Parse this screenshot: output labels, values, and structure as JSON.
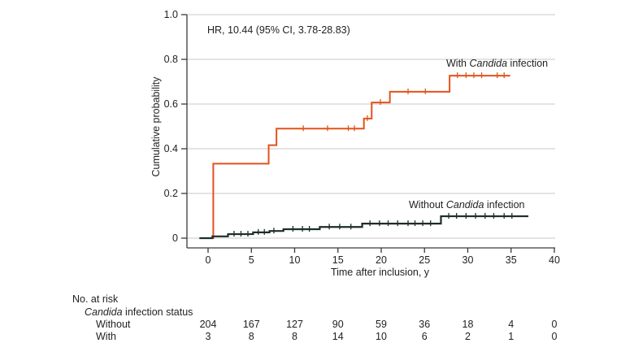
{
  "figure": {
    "annotation": "HR, 10.44 (95% CI, 3.78-28.83)",
    "colors": {
      "with_curve": "#E4521B",
      "without_curve": "#1D2E27",
      "grid": "#C9C9C9",
      "axis": "#3A3A3A",
      "text": "#1F1F1F"
    }
  },
  "chart_data": {
    "type": "line",
    "subtype": "kaplan-meier-cumulative-incidence",
    "annotation": "HR, 10.44 (95% CI, 3.78-28.83)",
    "xlabel": "Time after inclusion, y",
    "ylabel": "Cumulative probability",
    "xlim": [
      0,
      40
    ],
    "ylim": [
      0,
      1.0
    ],
    "grid": true,
    "legend_position": "labels-on-plot",
    "xticks": [
      0,
      5,
      10,
      15,
      20,
      25,
      30,
      35,
      40
    ],
    "xtick_labels": [
      "0",
      "5",
      "10",
      "15",
      "20",
      "25",
      "30",
      "35",
      "40"
    ],
    "yticks": [
      0,
      0.2,
      0.4,
      0.6,
      0.8,
      1.0
    ],
    "ytick_labels": [
      "0",
      "0.2",
      "0.4",
      "0.6",
      "0.8",
      "1.0"
    ],
    "series": [
      {
        "name": "With Candida infection",
        "label": {
          "prefix": "With ",
          "italic": "Candida",
          "suffix": " infection"
        },
        "color": "#E4521B",
        "steps": [
          [
            -1.0,
            0
          ],
          [
            0.6,
            0.333
          ],
          [
            7.0,
            0.416
          ],
          [
            7.9,
            0.49
          ],
          [
            18.0,
            0.535
          ],
          [
            18.9,
            0.607
          ],
          [
            21.0,
            0.655
          ],
          [
            27.9,
            0.727
          ]
        ],
        "end_time": 34.9,
        "censor_marks": [
          [
            11.0,
            0.49
          ],
          [
            13.8,
            0.49
          ],
          [
            16.2,
            0.49
          ],
          [
            16.9,
            0.49
          ],
          [
            18.4,
            0.535
          ],
          [
            19.9,
            0.607
          ],
          [
            23.1,
            0.655
          ],
          [
            25.1,
            0.655
          ],
          [
            28.8,
            0.727
          ],
          [
            29.8,
            0.727
          ],
          [
            30.7,
            0.727
          ],
          [
            31.6,
            0.727
          ],
          [
            33.4,
            0.727
          ],
          [
            34.2,
            0.727
          ]
        ]
      },
      {
        "name": "Without Candida infection",
        "label": {
          "prefix": "Without ",
          "italic": "Candida",
          "suffix": " infection"
        },
        "color": "#1D2E27",
        "steps": [
          [
            -1.0,
            0
          ],
          [
            0.5,
            0.008
          ],
          [
            2.3,
            0.018
          ],
          [
            5.2,
            0.026
          ],
          [
            7.1,
            0.032
          ],
          [
            8.7,
            0.04
          ],
          [
            12.9,
            0.05
          ],
          [
            17.8,
            0.065
          ],
          [
            26.9,
            0.098
          ]
        ],
        "end_time": 37.0,
        "censor_marks": [
          [
            3.0,
            0.018
          ],
          [
            3.8,
            0.018
          ],
          [
            4.6,
            0.018
          ],
          [
            5.8,
            0.026
          ],
          [
            6.5,
            0.026
          ],
          [
            7.6,
            0.032
          ],
          [
            9.8,
            0.04
          ],
          [
            10.9,
            0.04
          ],
          [
            11.7,
            0.04
          ],
          [
            14.0,
            0.05
          ],
          [
            15.2,
            0.05
          ],
          [
            16.5,
            0.05
          ],
          [
            18.7,
            0.065
          ],
          [
            19.8,
            0.065
          ],
          [
            20.8,
            0.065
          ],
          [
            21.9,
            0.065
          ],
          [
            23.1,
            0.065
          ],
          [
            23.9,
            0.065
          ],
          [
            24.8,
            0.065
          ],
          [
            25.7,
            0.065
          ],
          [
            27.8,
            0.098
          ],
          [
            28.7,
            0.098
          ],
          [
            29.8,
            0.098
          ],
          [
            30.9,
            0.098
          ],
          [
            32.0,
            0.098
          ],
          [
            33.0,
            0.098
          ],
          [
            34.2,
            0.098
          ],
          [
            35.1,
            0.098
          ]
        ]
      }
    ]
  },
  "risk_table": {
    "heading": "No. at risk",
    "subheading": {
      "italic": "Candida",
      "rest": " infection status"
    },
    "times": [
      0,
      5,
      10,
      15,
      20,
      25,
      30,
      35,
      40
    ],
    "rows": [
      {
        "label": "Without",
        "values": [
          "204",
          "167",
          "127",
          "90",
          "59",
          "36",
          "18",
          "4",
          "0"
        ]
      },
      {
        "label": "With",
        "values": [
          "3",
          "8",
          "8",
          "14",
          "10",
          "6",
          "2",
          "1",
          "0"
        ]
      }
    ]
  }
}
